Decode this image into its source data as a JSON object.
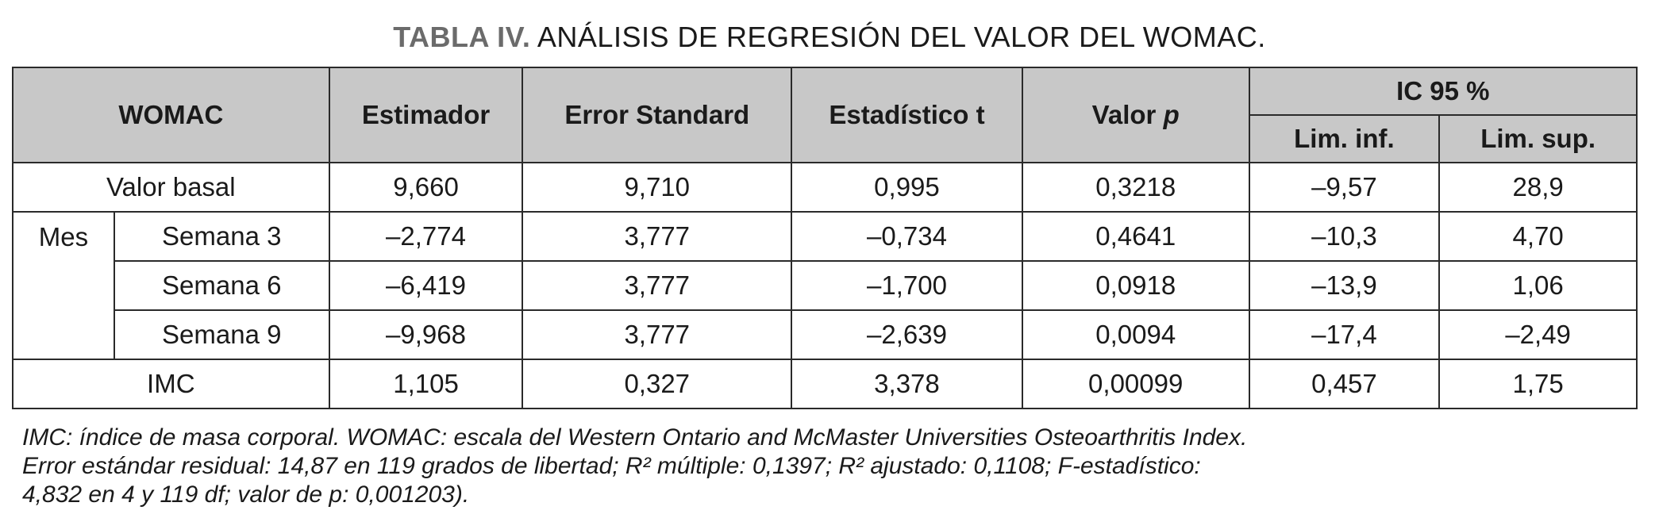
{
  "title": {
    "lead": "TABLA IV.",
    "text": "ANÁLISIS DE REGRESIÓN DEL VALOR DEL WOMAC."
  },
  "headers": {
    "womac": "WOMAC",
    "estimador": "Estimador",
    "error": "Error Standard",
    "t": "Estadístico t",
    "p_label": "Valor ",
    "p_italic": "p",
    "ic": "IC 95 %",
    "inf": "Lim. inf.",
    "sup": "Lim. sup."
  },
  "group_label": "Mes",
  "rows": [
    {
      "label": "Valor basal",
      "values": [
        "9,660",
        "9,710",
        "0,995",
        "0,3218",
        "–9,57",
        "28,9"
      ]
    },
    {
      "label": "Semana 3",
      "values": [
        "–2,774",
        "3,777",
        "–0,734",
        "0,4641",
        "–10,3",
        "4,70"
      ]
    },
    {
      "label": "Semana 6",
      "values": [
        "–6,419",
        "3,777",
        "–1,700",
        "0,0918",
        "–13,9",
        "1,06"
      ]
    },
    {
      "label": "Semana 9",
      "values": [
        "–9,968",
        "3,777",
        "–2,639",
        "0,0094",
        "–17,4",
        "–2,49"
      ]
    },
    {
      "label": "IMC",
      "values": [
        "1,105",
        "0,327",
        "3,378",
        "0,00099",
        "0,457",
        "1,75"
      ]
    }
  ],
  "notes": [
    "IMC: índice de masa corporal. WOMAC: escala del Western Ontario and McMaster Universities Osteoarthritis Index.",
    "Error estándar residual: 14,87 en 119 grados de libertad; R² múltiple: 0,1397; R² ajustado: 0,1108; F-estadístico:",
    "4,832 en 4 y 119 df; valor de p: 0,001203)."
  ],
  "colors": {
    "header_bg": "#c8c8c8",
    "title_lead": "#6b6b6b"
  }
}
